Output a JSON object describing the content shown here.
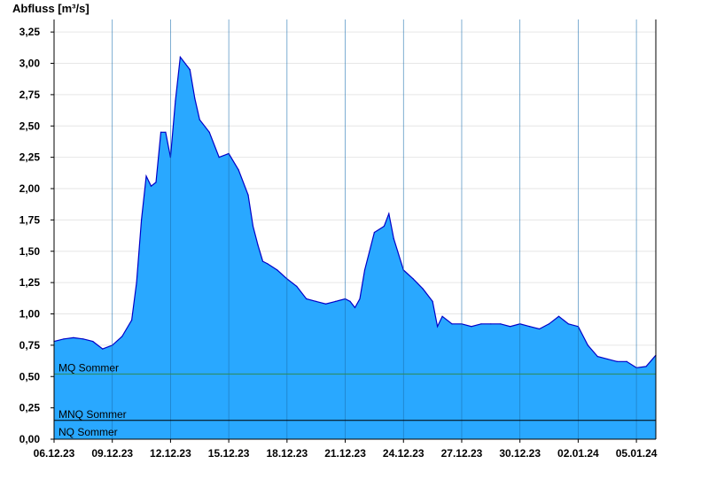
{
  "chart_data": {
    "type": "area",
    "title": "",
    "xlabel": "",
    "ylabel": "Abfluss [m³/s]",
    "ylim": [
      0,
      3.35
    ],
    "xlim": [
      "2023-12-06",
      "2024-01-06"
    ],
    "yticks": [
      "0,00",
      "0,25",
      "0,50",
      "0,75",
      "1,00",
      "1,25",
      "1,50",
      "1,75",
      "2,00",
      "2,25",
      "2,50",
      "2,75",
      "3,00",
      "3,25"
    ],
    "ytick_values": [
      0,
      0.25,
      0.5,
      0.75,
      1.0,
      1.25,
      1.5,
      1.75,
      2.0,
      2.25,
      2.5,
      2.75,
      3.0,
      3.25
    ],
    "xticks": [
      "06.12.23",
      "09.12.23",
      "12.12.23",
      "15.12.23",
      "18.12.23",
      "21.12.23",
      "24.12.23",
      "27.12.23",
      "30.12.23",
      "02.01.24",
      "05.01.24"
    ],
    "xtick_dates": [
      "2023-12-06",
      "2023-12-09",
      "2023-12-12",
      "2023-12-15",
      "2023-12-18",
      "2023-12-21",
      "2023-12-24",
      "2023-12-27",
      "2023-12-30",
      "2024-01-02",
      "2024-01-05"
    ],
    "grid": true,
    "fill_color": "#29a8ff",
    "line_color": "#0000c8",
    "reference_lines": [
      {
        "label": "MQ Sommer",
        "value": 0.52,
        "color": "#2e8b57"
      },
      {
        "label": "MNQ Sommer",
        "value": 0.15,
        "color": "#000000"
      },
      {
        "label": "NQ Sommer",
        "value": 0.0,
        "color": "#000000"
      }
    ],
    "series": [
      {
        "name": "",
        "x": [
          "2023-12-06 00:00",
          "2023-12-06 12:00",
          "2023-12-07 00:00",
          "2023-12-07 12:00",
          "2023-12-08 00:00",
          "2023-12-08 12:00",
          "2023-12-09 00:00",
          "2023-12-09 12:00",
          "2023-12-10 00:00",
          "2023-12-10 06:00",
          "2023-12-10 12:00",
          "2023-12-10 18:00",
          "2023-12-11 00:00",
          "2023-12-11 06:00",
          "2023-12-11 12:00",
          "2023-12-11 18:00",
          "2023-12-12 00:00",
          "2023-12-12 06:00",
          "2023-12-12 12:00",
          "2023-12-13 00:00",
          "2023-12-13 06:00",
          "2023-12-13 12:00",
          "2023-12-14 00:00",
          "2023-12-14 12:00",
          "2023-12-15 00:00",
          "2023-12-15 12:00",
          "2023-12-16 00:00",
          "2023-12-16 06:00",
          "2023-12-16 12:00",
          "2023-12-16 18:00",
          "2023-12-17 00:00",
          "2023-12-17 12:00",
          "2023-12-18 00:00",
          "2023-12-18 12:00",
          "2023-12-19 00:00",
          "2023-12-19 12:00",
          "2023-12-20 00:00",
          "2023-12-20 12:00",
          "2023-12-21 00:00",
          "2023-12-21 06:00",
          "2023-12-21 12:00",
          "2023-12-21 18:00",
          "2023-12-22 00:00",
          "2023-12-22 12:00",
          "2023-12-23 00:00",
          "2023-12-23 06:00",
          "2023-12-23 12:00",
          "2023-12-24 00:00",
          "2023-12-24 12:00",
          "2023-12-25 00:00",
          "2023-12-25 12:00",
          "2023-12-25 18:00",
          "2023-12-26 00:00",
          "2023-12-26 12:00",
          "2023-12-27 00:00",
          "2023-12-27 12:00",
          "2023-12-28 00:00",
          "2023-12-28 12:00",
          "2023-12-29 00:00",
          "2023-12-29 12:00",
          "2023-12-30 00:00",
          "2023-12-30 12:00",
          "2023-12-31 00:00",
          "2023-12-31 12:00",
          "2024-01-01 00:00",
          "2024-01-01 12:00",
          "2024-01-02 00:00",
          "2024-01-02 12:00",
          "2024-01-03 00:00",
          "2024-01-03 12:00",
          "2024-01-04 00:00",
          "2024-01-04 12:00",
          "2024-01-05 00:00",
          "2024-01-05 12:00",
          "2024-01-06 00:00"
        ],
        "values": [
          0.78,
          0.8,
          0.81,
          0.8,
          0.78,
          0.72,
          0.75,
          0.82,
          0.95,
          1.25,
          1.75,
          2.1,
          2.02,
          2.05,
          2.45,
          2.45,
          2.25,
          2.7,
          3.05,
          2.95,
          2.72,
          2.55,
          2.45,
          2.25,
          2.28,
          2.15,
          1.95,
          1.7,
          1.55,
          1.42,
          1.4,
          1.35,
          1.28,
          1.22,
          1.12,
          1.1,
          1.08,
          1.1,
          1.12,
          1.1,
          1.05,
          1.12,
          1.35,
          1.65,
          1.7,
          1.8,
          1.6,
          1.35,
          1.28,
          1.2,
          1.1,
          0.9,
          0.98,
          0.92,
          0.92,
          0.9,
          0.92,
          0.92,
          0.92,
          0.9,
          0.92,
          0.9,
          0.88,
          0.92,
          0.98,
          0.92,
          0.9,
          0.75,
          0.66,
          0.64,
          0.62,
          0.62,
          0.57,
          0.58,
          0.67
        ]
      }
    ]
  }
}
